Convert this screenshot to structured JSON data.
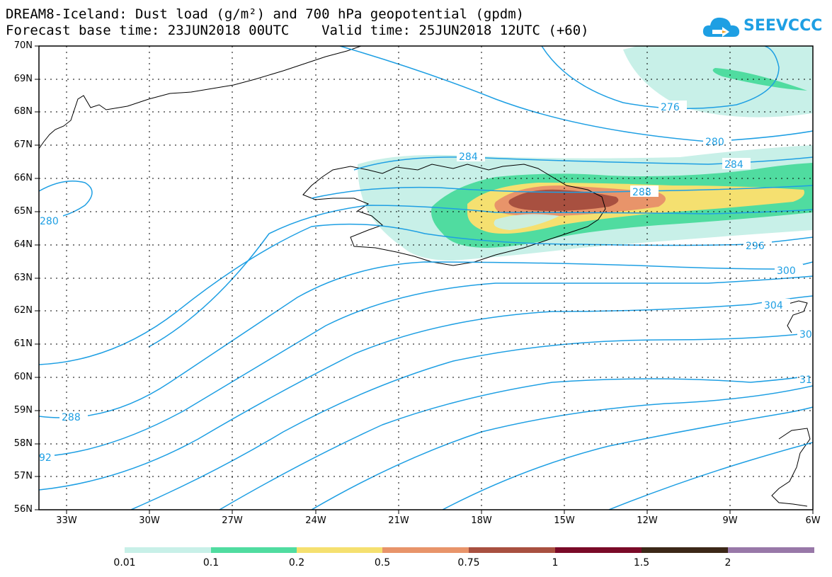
{
  "title_line1": "DREAM8-Iceland: Dust load (g/m²) and 700 hPa geopotential (gpdm)",
  "title_line2": "Forecast base time: 23JUN2018 00UTC    Valid time: 25JUN2018 12UTC (+60)",
  "logo_text": "SEEVCCC",
  "map": {
    "lat_labels": [
      "70N",
      "69N",
      "68N",
      "67N",
      "66N",
      "65N",
      "64N",
      "63N",
      "62N",
      "61N",
      "60N",
      "59N",
      "58N",
      "57N",
      "56N"
    ],
    "lon_labels": [
      "33W",
      "30W",
      "27W",
      "24W",
      "21W",
      "18W",
      "15W",
      "12W",
      "9W",
      "6W"
    ],
    "contour_labels": [
      "276",
      "280",
      "284",
      "288",
      "280",
      "288",
      "296",
      "300",
      "304",
      "30",
      "31",
      "92"
    ]
  },
  "colorbar": {
    "labels": [
      "0.01",
      "0.1",
      "0.2",
      "0.5",
      "0.75",
      "1",
      "1.5",
      "2"
    ],
    "colors": [
      "#c8f0e8",
      "#50dca0",
      "#f5e070",
      "#e8946a",
      "#a85040",
      "#7a0a28",
      "#3c2818",
      "#9878a8"
    ]
  },
  "colors": {
    "contour": "#1e9fe3",
    "grid": "#000000",
    "coast": "#000000"
  }
}
